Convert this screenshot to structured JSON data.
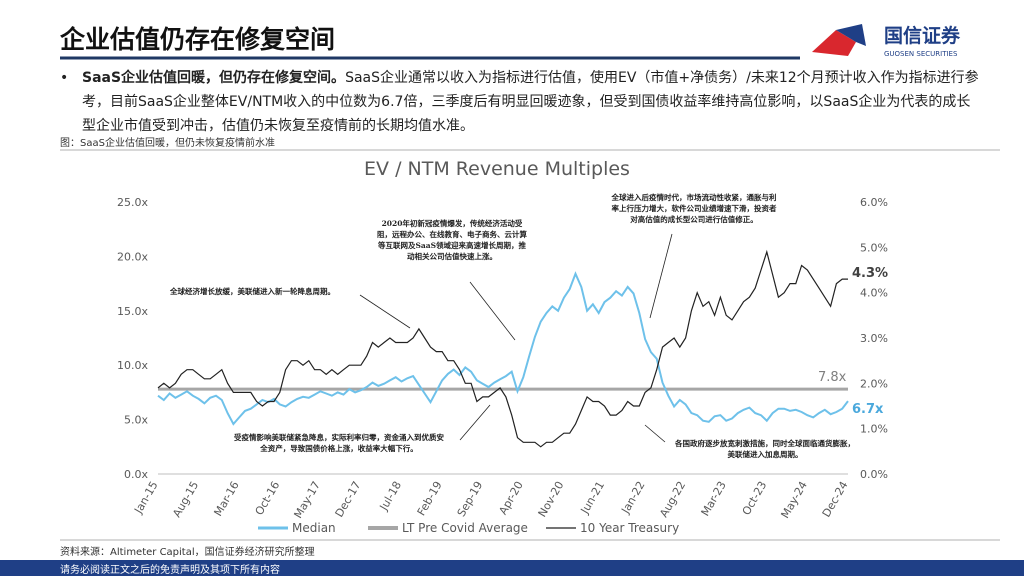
{
  "header": {
    "title": "企业估值仍存在修复空间",
    "logo_text": "国信证券",
    "logo_sub": "GUOSEN SECURITIES"
  },
  "bullet": {
    "marker": "•",
    "bold": "SaaS企业估值回暖，但仍存在修复空间。",
    "text": "SaaS企业通常以收入为指标进行估值，使用EV（市值+净债务）/未来12个月预计收入作为指标进行参考，目前SaaS企业整体EV/NTM收入的中位数为6.7倍，三季度后有明显回暖迹象，但受到国债收益率维持高位影响，以SaaS企业为代表的成长型企业市值受到冲击，估值仍未恢复至疫情前的长期均值水准。"
  },
  "caption": "图：SaaS企业估值回暖，但仍未恢复疫情前水准",
  "source": "资料来源：Altimeter Capital，国信证券经济研究所整理",
  "footer": "请务必阅读正文之后的免责声明及其项下所有内容",
  "chart_data": {
    "type": "line",
    "title": "EV / NTM Revenue Multiples",
    "categories": [
      "Jan-15",
      null,
      null,
      null,
      null,
      null,
      null,
      "Aug-15",
      null,
      null,
      null,
      null,
      null,
      null,
      "Mar-16",
      null,
      null,
      null,
      null,
      null,
      null,
      "Oct-16",
      null,
      null,
      null,
      null,
      null,
      null,
      "May-17",
      null,
      null,
      null,
      null,
      null,
      null,
      "Dec-17",
      null,
      null,
      null,
      null,
      null,
      null,
      "Jul-18",
      null,
      null,
      null,
      null,
      null,
      null,
      "Feb-19",
      null,
      null,
      null,
      null,
      null,
      null,
      "Sep-19",
      null,
      null,
      null,
      null,
      null,
      null,
      "Apr-20",
      null,
      null,
      null,
      null,
      null,
      null,
      "Nov-20",
      null,
      null,
      null,
      null,
      null,
      null,
      "Jun-21",
      null,
      null,
      null,
      null,
      null,
      null,
      "Jan-22",
      null,
      null,
      null,
      null,
      null,
      null,
      "Aug-22",
      null,
      null,
      null,
      null,
      null,
      null,
      "Mar-23",
      null,
      null,
      null,
      null,
      null,
      null,
      "Oct-23",
      null,
      null,
      null,
      null,
      null,
      null,
      "May-24",
      null,
      null,
      null,
      null,
      null,
      null,
      "Dec-24"
    ],
    "series": [
      {
        "name": "Median",
        "color": "#6ec1ea",
        "axis": "y",
        "end_label": "6.7x",
        "values": [
          7.2,
          6.8,
          7.4,
          7.0,
          7.3,
          7.6,
          7.2,
          6.9,
          6.5,
          7.0,
          7.2,
          6.8,
          5.6,
          4.6,
          5.2,
          5.8,
          6.0,
          6.4,
          6.8,
          6.6,
          6.9,
          6.4,
          6.2,
          6.6,
          6.9,
          7.1,
          7.0,
          7.3,
          7.6,
          7.4,
          7.2,
          7.5,
          7.3,
          7.8,
          7.5,
          7.7,
          8.0,
          8.4,
          8.1,
          8.3,
          8.6,
          8.9,
          8.5,
          8.8,
          9.0,
          8.2,
          7.4,
          6.6,
          7.6,
          8.6,
          9.2,
          9.6,
          9.1,
          9.8,
          9.4,
          8.6,
          8.3,
          8.0,
          8.4,
          8.7,
          9.0,
          9.4,
          7.6,
          8.9,
          10.8,
          12.6,
          14.0,
          14.8,
          15.4,
          15.0,
          16.2,
          17.0,
          18.4,
          17.2,
          15.0,
          15.6,
          14.8,
          15.8,
          16.2,
          16.8,
          16.4,
          17.2,
          16.6,
          14.8,
          12.4,
          11.2,
          10.6,
          8.4,
          7.2,
          6.2,
          6.8,
          6.4,
          5.6,
          5.4,
          4.9,
          4.8,
          5.3,
          5.4,
          4.9,
          5.1,
          5.6,
          5.9,
          6.1,
          5.6,
          5.4,
          4.9,
          5.6,
          6.0,
          6.0,
          5.8,
          5.9,
          5.7,
          5.4,
          5.2,
          5.6,
          5.9,
          5.5,
          5.7,
          6.0,
          6.7
        ]
      },
      {
        "name": "10 Year Treasury",
        "color": "#222222",
        "axis": "y2",
        "end_label": "4.3%",
        "values": [
          1.9,
          2.0,
          1.9,
          2.0,
          2.2,
          2.3,
          2.3,
          2.2,
          2.1,
          2.1,
          2.2,
          2.3,
          2.0,
          1.8,
          1.8,
          1.8,
          1.8,
          1.6,
          1.5,
          1.6,
          1.6,
          1.8,
          2.3,
          2.5,
          2.5,
          2.4,
          2.5,
          2.3,
          2.3,
          2.2,
          2.3,
          2.2,
          2.3,
          2.4,
          2.4,
          2.4,
          2.6,
          2.9,
          2.8,
          2.9,
          3.0,
          2.9,
          2.9,
          2.9,
          3.0,
          3.2,
          3.0,
          2.8,
          2.7,
          2.7,
          2.5,
          2.5,
          2.3,
          2.0,
          2.0,
          1.6,
          1.7,
          1.7,
          1.8,
          1.9,
          1.7,
          1.3,
          0.8,
          0.7,
          0.7,
          0.7,
          0.6,
          0.7,
          0.7,
          0.8,
          0.9,
          0.9,
          1.1,
          1.4,
          1.7,
          1.6,
          1.6,
          1.5,
          1.3,
          1.3,
          1.4,
          1.6,
          1.5,
          1.5,
          1.8,
          1.9,
          2.3,
          2.8,
          2.9,
          3.0,
          2.8,
          3.0,
          3.6,
          4.0,
          3.7,
          3.8,
          3.5,
          3.9,
          3.5,
          3.4,
          3.6,
          3.8,
          3.9,
          4.1,
          4.5,
          4.9,
          4.4,
          3.9,
          4.0,
          4.2,
          4.2,
          4.6,
          4.5,
          4.3,
          4.1,
          3.9,
          3.7,
          4.2,
          4.3,
          4.3
        ]
      }
    ],
    "reference_line": {
      "name": "LT Pre Covid Average",
      "color": "#a6a6a6",
      "value": 7.8,
      "label": "7.8x"
    },
    "ylim": [
      0,
      25
    ],
    "yticks": [
      {
        "value": 0,
        "label": "0.0x"
      },
      {
        "value": 5,
        "label": "5.0x"
      },
      {
        "value": 10,
        "label": "10.0x"
      },
      {
        "value": 15,
        "label": "15.0x"
      },
      {
        "value": 20,
        "label": "20.0x"
      },
      {
        "value": 25,
        "label": "25.0x"
      }
    ],
    "y2lim": [
      0,
      6
    ],
    "y2ticks": [
      {
        "value": 0,
        "label": "0.0%"
      },
      {
        "value": 1,
        "label": "1.0%"
      },
      {
        "value": 2,
        "label": "2.0%"
      },
      {
        "value": 3,
        "label": "3.0%"
      },
      {
        "value": 4,
        "label": "4.0%"
      },
      {
        "value": 5,
        "label": "5.0%"
      },
      {
        "value": 6,
        "label": "6.0%"
      }
    ],
    "legend": "bottom",
    "annotations": [
      "全球经济增长放缓，美联储进入新一轮降息周期。",
      "2020年初新冠疫情爆发，传统经济活动受阻，远程办公、在线教育、电子商务、云计算等互联网及SaaS领域迎来高速增长周期，推动相关公司估值快速上涨。",
      "全球进入后疫情时代，市场流动性收紧，通胀与利率上行压力增大，软件公司业绩增速下滑，投资者对高估值的成长型公司进行估值修正。",
      "受疫情影响美联储紧急降息，实际利率归零，资金涌入到优质安全资产，导致国债价格上涨，收益率大幅下行。",
      "各国政府逐步放宽刺激措施，同时全球面临通货膨胀，美联储进入加息周期。"
    ]
  }
}
